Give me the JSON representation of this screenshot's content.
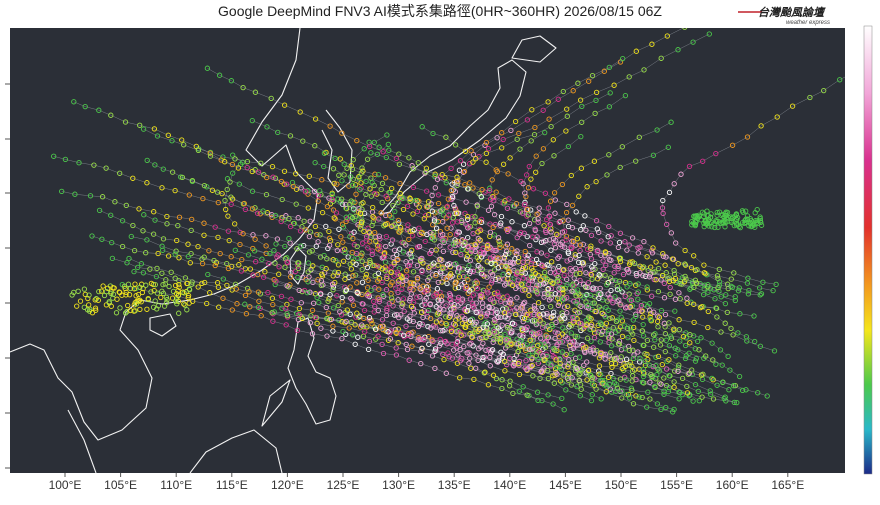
{
  "header": {
    "title": "Google DeepMind FNV3 AI模式系集路徑(0HR~360HR) 2026/08/15 06Z",
    "logo": {
      "name": "台灣颱風論壇",
      "tagline": "weather express"
    }
  },
  "map": {
    "x_axis": {
      "ticks": [
        {
          "value": 100,
          "label": "100°E"
        },
        {
          "value": 105,
          "label": "105°E"
        },
        {
          "value": 110,
          "label": "110°E"
        },
        {
          "value": 115,
          "label": "115°E"
        },
        {
          "value": 120,
          "label": "120°E"
        },
        {
          "value": 125,
          "label": "125°E"
        },
        {
          "value": 130,
          "label": "130°E"
        },
        {
          "value": 135,
          "label": "135°E"
        },
        {
          "value": 140,
          "label": "140°E"
        },
        {
          "value": 145,
          "label": "145°E"
        },
        {
          "value": 150,
          "label": "150°E"
        },
        {
          "value": 155,
          "label": "155°E"
        },
        {
          "value": 160,
          "label": "160°E"
        },
        {
          "value": 165,
          "label": "165°E"
        }
      ]
    }
  }
}
